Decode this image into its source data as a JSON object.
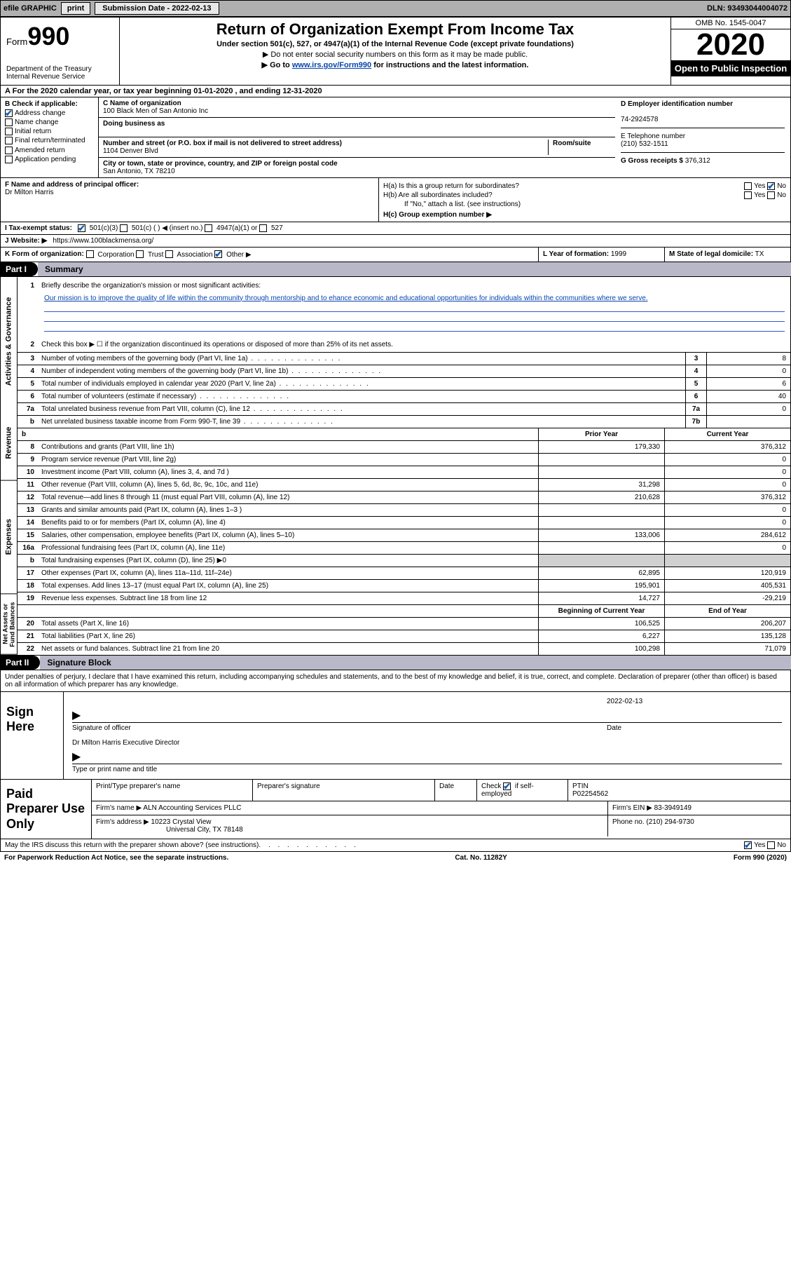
{
  "topbar": {
    "efile_label": "efile GRAPHIC",
    "print_btn": "print",
    "submission_label": "Submission Date - 2022-02-13",
    "dln_label": "DLN: 93493044004072"
  },
  "header": {
    "form_word": "Form",
    "form_num": "990",
    "dept": "Department of the Treasury",
    "irs": "Internal Revenue Service",
    "title": "Return of Organization Exempt From Income Tax",
    "sub1": "Under section 501(c), 527, or 4947(a)(1) of the Internal Revenue Code (except private foundations)",
    "sub2": "▶ Do not enter social security numbers on this form as it may be made public.",
    "sub3_pre": "▶ Go to ",
    "sub3_link": "www.irs.gov/Form990",
    "sub3_post": " for instructions and the latest information.",
    "omb": "OMB No. 1545-0047",
    "year": "2020",
    "open": "Open to Public Inspection"
  },
  "section_a": "For the 2020 calendar year, or tax year beginning 01-01-2020   , and ending 12-31-2020",
  "box_b": {
    "title": "B Check if applicable:",
    "items": [
      "Address change",
      "Name change",
      "Initial return",
      "Final return/terminated",
      "Amended return",
      "Application pending"
    ],
    "checked_idx": 0
  },
  "box_c": {
    "name_lbl": "C Name of organization",
    "name": "100 Black Men of San Antonio Inc",
    "dba_lbl": "Doing business as",
    "addr_lbl": "Number and street (or P.O. box if mail is not delivered to street address)",
    "room_lbl": "Room/suite",
    "addr": "1104 Denver Blvd",
    "city_lbl": "City or town, state or province, country, and ZIP or foreign postal code",
    "city": "San Antonio, TX  78210"
  },
  "box_d": {
    "ein_lbl": "D Employer identification number",
    "ein": "74-2924578",
    "phone_lbl": "E Telephone number",
    "phone": "(210) 532-1511",
    "gross_lbl": "G Gross receipts $",
    "gross": "376,312"
  },
  "box_f": {
    "lbl": "F  Name and address of principal officer:",
    "name": "Dr Milton Harris"
  },
  "box_h": {
    "ha_lbl": "H(a)  Is this a group return for subordinates?",
    "hb_lbl": "H(b)  Are all subordinates included?",
    "hb_note": "If \"No,\" attach a list. (see instructions)",
    "hc_lbl": "H(c)  Group exemption number ▶",
    "yes": "Yes",
    "no": "No"
  },
  "row_i": {
    "lbl": "I   Tax-exempt status:",
    "opts": [
      "501(c)(3)",
      "501(c) (  ) ◀ (insert no.)",
      "4947(a)(1) or",
      "527"
    ],
    "checked_idx": 0
  },
  "row_j": {
    "lbl": "J   Website: ▶",
    "url": "https://www.100blackmensa.org/"
  },
  "row_k": {
    "lbl": "K Form of organization:",
    "opts": [
      "Corporation",
      "Trust",
      "Association",
      "Other ▶"
    ],
    "checked_idx": 3,
    "l_lbl": "L Year of formation:",
    "l_val": "1999",
    "m_lbl": "M State of legal domicile:",
    "m_val": "TX"
  },
  "part1": {
    "tag": "Part I",
    "title": "Summary"
  },
  "mission": {
    "num": "1",
    "lbl": "Briefly describe the organization's mission or most significant activities:",
    "text": "Our mission is to improve the quality of life within the community through mentorship and to ehance economic and educational opportunities for individuals within the communities where we serve."
  },
  "line2": {
    "num": "2",
    "text": "Check this box ▶ ☐  if the organization discontinued its operations or disposed of more than 25% of its net assets."
  },
  "gov_lines": [
    {
      "n": "3",
      "t": "Number of voting members of the governing body (Part VI, line 1a)",
      "box": "3",
      "v": "8"
    },
    {
      "n": "4",
      "t": "Number of independent voting members of the governing body (Part VI, line 1b)",
      "box": "4",
      "v": "0"
    },
    {
      "n": "5",
      "t": "Total number of individuals employed in calendar year 2020 (Part V, line 2a)",
      "box": "5",
      "v": "6"
    },
    {
      "n": "6",
      "t": "Total number of volunteers (estimate if necessary)",
      "box": "6",
      "v": "40"
    },
    {
      "n": "7a",
      "t": "Total unrelated business revenue from Part VIII, column (C), line 12",
      "box": "7a",
      "v": "0"
    },
    {
      "n": "b",
      "t": "Net unrelated business taxable income from Form 990-T, line 39",
      "box": "7b",
      "v": ""
    }
  ],
  "col_hdrs": {
    "prior": "Prior Year",
    "current": "Current Year"
  },
  "revenue": [
    {
      "n": "8",
      "t": "Contributions and grants (Part VIII, line 1h)",
      "p": "179,330",
      "c": "376,312"
    },
    {
      "n": "9",
      "t": "Program service revenue (Part VIII, line 2g)",
      "p": "",
      "c": "0"
    },
    {
      "n": "10",
      "t": "Investment income (Part VIII, column (A), lines 3, 4, and 7d )",
      "p": "",
      "c": "0"
    },
    {
      "n": "11",
      "t": "Other revenue (Part VIII, column (A), lines 5, 6d, 8c, 9c, 10c, and 11e)",
      "p": "31,298",
      "c": "0"
    },
    {
      "n": "12",
      "t": "Total revenue—add lines 8 through 11 (must equal Part VIII, column (A), line 12)",
      "p": "210,628",
      "c": "376,312"
    }
  ],
  "expenses": [
    {
      "n": "13",
      "t": "Grants and similar amounts paid (Part IX, column (A), lines 1–3 )",
      "p": "",
      "c": "0"
    },
    {
      "n": "14",
      "t": "Benefits paid to or for members (Part IX, column (A), line 4)",
      "p": "",
      "c": "0"
    },
    {
      "n": "15",
      "t": "Salaries, other compensation, employee benefits (Part IX, column (A), lines 5–10)",
      "p": "133,006",
      "c": "284,612"
    },
    {
      "n": "16a",
      "t": "Professional fundraising fees (Part IX, column (A), line 11e)",
      "p": "",
      "c": "0"
    },
    {
      "n": "b",
      "t": "Total fundraising expenses (Part IX, column (D), line 25) ▶0",
      "p": "shade",
      "c": "shade"
    },
    {
      "n": "17",
      "t": "Other expenses (Part IX, column (A), lines 11a–11d, 11f–24e)",
      "p": "62,895",
      "c": "120,919"
    },
    {
      "n": "18",
      "t": "Total expenses. Add lines 13–17 (must equal Part IX, column (A), line 25)",
      "p": "195,901",
      "c": "405,531"
    },
    {
      "n": "19",
      "t": "Revenue less expenses. Subtract line 18 from line 12",
      "p": "14,727",
      "c": "-29,219"
    }
  ],
  "net_hdrs": {
    "begin": "Beginning of Current Year",
    "end": "End of Year"
  },
  "netassets": [
    {
      "n": "20",
      "t": "Total assets (Part X, line 16)",
      "p": "106,525",
      "c": "206,207"
    },
    {
      "n": "21",
      "t": "Total liabilities (Part X, line 26)",
      "p": "6,227",
      "c": "135,128"
    },
    {
      "n": "22",
      "t": "Net assets or fund balances. Subtract line 21 from line 20",
      "p": "100,298",
      "c": "71,079"
    }
  ],
  "side_labels": {
    "gov": "Activities & Governance",
    "rev": "Revenue",
    "exp": "Expenses",
    "net": "Net Assets or Fund Balances"
  },
  "part2": {
    "tag": "Part II",
    "title": "Signature Block"
  },
  "declare": "Under penalties of perjury, I declare that I have examined this return, including accompanying schedules and statements, and to the best of my knowledge and belief, it is true, correct, and complete. Declaration of preparer (other than officer) is based on all information of which preparer has any knowledge.",
  "sign": {
    "label": "Sign Here",
    "sig_lbl": "Signature of officer",
    "date_lbl": "Date",
    "date": "2022-02-13",
    "name": "Dr Milton Harris  Executive Director",
    "name_lbl": "Type or print name and title"
  },
  "preparer": {
    "label": "Paid Preparer Use Only",
    "h1": "Print/Type preparer's name",
    "h2": "Preparer's signature",
    "h3": "Date",
    "h4_check": "Check ☑ if self-employed",
    "h5_lbl": "PTIN",
    "h5": "P02254562",
    "firm_lbl": "Firm's name   ▶",
    "firm": "ALN Accounting Services PLLC",
    "ein_lbl": "Firm's EIN ▶",
    "ein": "83-3949149",
    "addr_lbl": "Firm's address ▶",
    "addr1": "10223 Crystal View",
    "addr2": "Universal City, TX  78148",
    "phone_lbl": "Phone no.",
    "phone": "(210) 294-9730"
  },
  "discuss": {
    "q": "May the IRS discuss this return with the preparer shown above? (see instructions)",
    "yes": "Yes",
    "no": "No"
  },
  "footer": {
    "left": "For Paperwork Reduction Act Notice, see the separate instructions.",
    "mid": "Cat. No. 11282Y",
    "right": "Form 990 (2020)"
  }
}
